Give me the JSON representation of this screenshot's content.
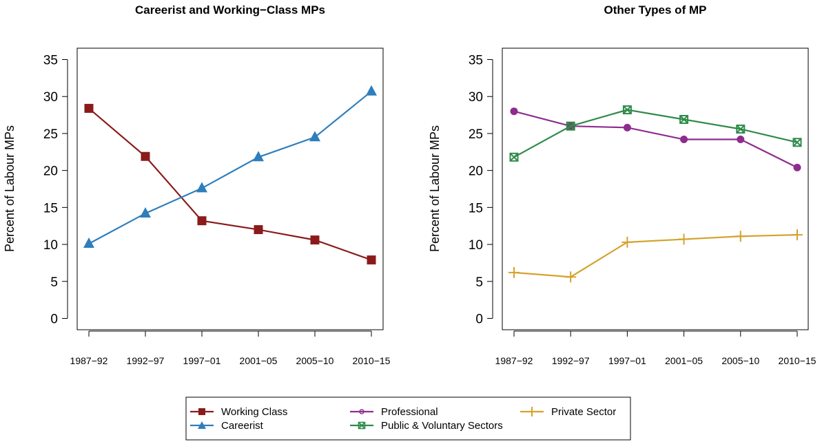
{
  "colors": {
    "working_class": "#8b1a1a",
    "careerist": "#2e7ebc",
    "professional": "#8e2c8e",
    "public_voluntary": "#2e8b4a",
    "private_sector": "#d4a22c"
  },
  "legend": {
    "placement": "bottom-center",
    "entries": [
      {
        "label": "Working Class",
        "key": "working_class",
        "marker": "square"
      },
      {
        "label": "Careerist",
        "key": "careerist",
        "marker": "triangle"
      },
      {
        "label": "Professional",
        "key": "professional",
        "marker": "circle"
      },
      {
        "label": "Public & Voluntary Sectors",
        "key": "public_voluntary",
        "marker": "crossbox"
      },
      {
        "label": "Private Sector",
        "key": "private_sector",
        "marker": "plus"
      }
    ]
  },
  "chart_data": [
    {
      "type": "line",
      "title": "Careerist and Working−Class MPs",
      "ylabel": "Percent of Labour MPs",
      "xlabel": "",
      "categories": [
        "1987−92",
        "1992−97",
        "1997−01",
        "2001−05",
        "2005−10",
        "2010−15"
      ],
      "ylim": [
        0,
        35
      ],
      "yticks": [
        0,
        5,
        10,
        15,
        20,
        25,
        30,
        35
      ],
      "grid": false,
      "series": [
        {
          "name": "Working Class",
          "key": "working_class",
          "marker": "square",
          "values": [
            28.4,
            21.9,
            13.2,
            12.0,
            10.6,
            7.9
          ]
        },
        {
          "name": "Careerist",
          "key": "careerist",
          "marker": "triangle",
          "values": [
            10.1,
            14.2,
            17.6,
            21.8,
            24.5,
            30.7
          ]
        }
      ]
    },
    {
      "type": "line",
      "title": "Other Types of MP",
      "ylabel": "Percent of Labour MPs",
      "xlabel": "",
      "categories": [
        "1987−92",
        "1992−97",
        "1997−01",
        "2001−05",
        "2005−10",
        "2010−15"
      ],
      "ylim": [
        0,
        35
      ],
      "yticks": [
        0,
        5,
        10,
        15,
        20,
        25,
        30,
        35
      ],
      "grid": false,
      "series": [
        {
          "name": "Professional",
          "key": "professional",
          "marker": "circle",
          "values": [
            28.0,
            26.0,
            25.8,
            24.2,
            24.2,
            20.4
          ]
        },
        {
          "name": "Public & Voluntary Sectors",
          "key": "public_voluntary",
          "marker": "crossbox",
          "values": [
            21.8,
            26.0,
            28.2,
            26.9,
            25.6,
            23.8
          ]
        },
        {
          "name": "Private Sector",
          "key": "private_sector",
          "marker": "plus",
          "values": [
            6.2,
            5.6,
            10.3,
            10.7,
            11.1,
            11.3
          ]
        }
      ]
    }
  ]
}
